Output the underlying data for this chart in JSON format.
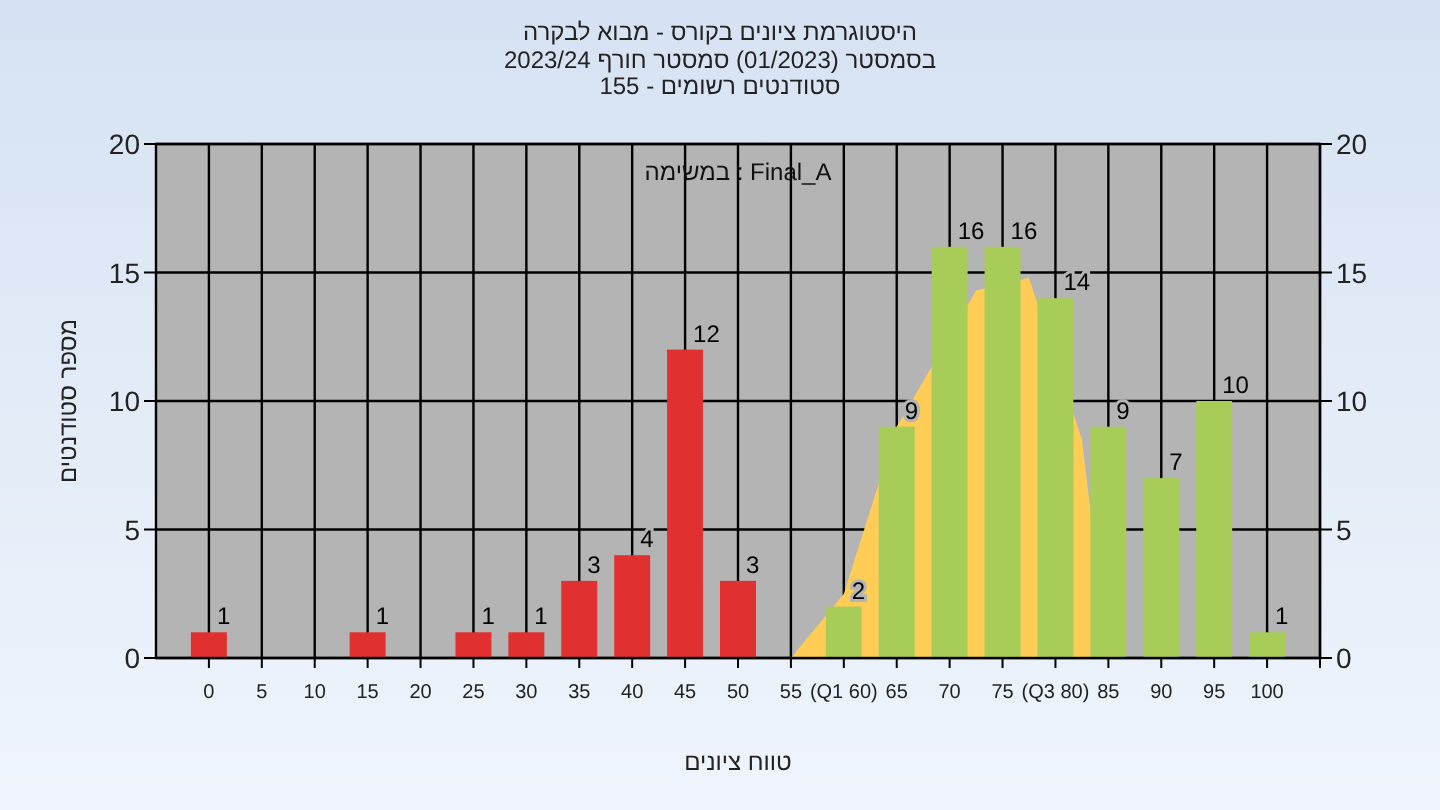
{
  "chart_data": {
    "type": "bar",
    "title": "היסטוגרמת ציונים בקורס - מבוא לבקרה",
    "subtitle": "בסמסטר (01/2023) סמסטר חורף 2023/24\nסטודנטים רשומים - 155",
    "xlabel": "טווח ציונים",
    "ylabel": "מספר סטודנטים",
    "annotations": [
      "במשימה : Final_A"
    ],
    "x": [
      0,
      5,
      10,
      15,
      20,
      25,
      30,
      35,
      40,
      45,
      50,
      55,
      60,
      65,
      70,
      75,
      80,
      85,
      90,
      95,
      100
    ],
    "series": [
      {
        "type": "area",
        "color": "#ffcc55",
        "x": [
          55,
          60,
          65,
          72.5,
          77.5,
          82.5,
          85
        ],
        "values": [
          0,
          2.5,
          9,
          14.3,
          14.8,
          8.5,
          0
        ]
      },
      {
        "colors": [
          "#e03030",
          "#e03030",
          "#e03030",
          "#e03030",
          "#e03030",
          "#e03030",
          "#e03030",
          "#e03030",
          "#e03030",
          "#e03030",
          "#e03030",
          "#e03030",
          "#a8cc58",
          "#a8cc58",
          "#a8cc58",
          "#a8cc58",
          "#a8cc58",
          "#a8cc58",
          "#a8cc58",
          "#a8cc58",
          "#a8cc58"
        ],
        "values": [
          1,
          0,
          0,
          1,
          0,
          1,
          1,
          3,
          4,
          12,
          3,
          0,
          2,
          9,
          16,
          16,
          14,
          9,
          7,
          10,
          1
        ],
        "value_labels": [
          "1",
          null,
          null,
          "1",
          null,
          "1",
          "1",
          "3",
          "4",
          "12",
          "3",
          null,
          "2",
          "9",
          "16",
          "16",
          "14",
          "9",
          "7",
          "10",
          "1"
        ]
      }
    ],
    "xlim": [
      -5,
      105
    ],
    "xticks": [
      0,
      5,
      10,
      15,
      20,
      25,
      30,
      35,
      40,
      45,
      50,
      55,
      {
        "value": 60,
        "label": "(Q1 60)"
      },
      65,
      70,
      75,
      {
        "value": 80,
        "label": "(Q3 80)"
      },
      85,
      90,
      95,
      100,
      {
        "value": 105,
        "label": null
      }
    ],
    "ylim": [
      0,
      20
    ],
    "yticks": [
      0,
      5,
      10,
      15,
      20
    ],
    "y2lim": [
      0,
      20
    ],
    "y2ticks": [
      0,
      5,
      10,
      15,
      20
    ],
    "grid": true
  }
}
